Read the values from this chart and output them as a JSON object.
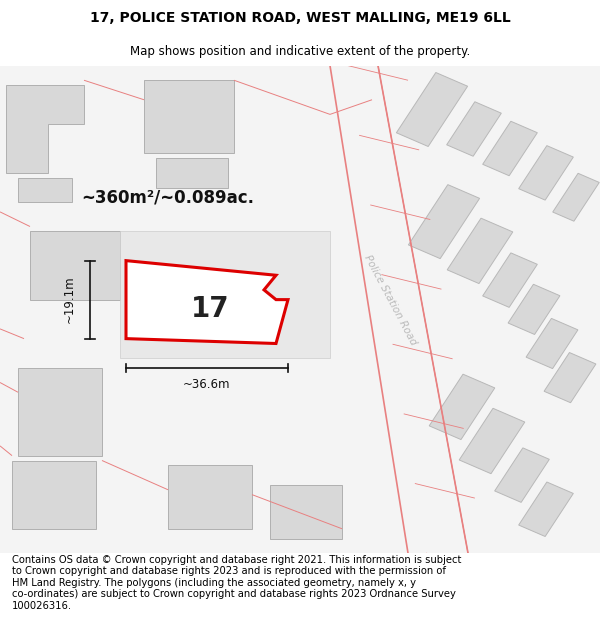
{
  "title_line1": "17, POLICE STATION ROAD, WEST MALLING, ME19 6LL",
  "title_line2": "Map shows position and indicative extent of the property.",
  "footer_text": "Contains OS data © Crown copyright and database right 2021. This information is subject\nto Crown copyright and database rights 2023 and is reproduced with the permission of\nHM Land Registry. The polygons (including the associated geometry, namely x, y\nco-ordinates) are subject to Crown copyright and database rights 2023 Ordnance Survey\n100026316.",
  "background_color": "#ffffff",
  "building_fill": "#e0e0e0",
  "building_edge": "#bbbbbb",
  "road_line_color": "#e88080",
  "highlight_color": "#dd0000",
  "area_label": "~360m²/~0.089ac.",
  "number_label": "17",
  "dim_width": "~36.6m",
  "dim_height": "~19.1m",
  "road_label": "Police Station Road",
  "title_fontsize": 10,
  "subtitle_fontsize": 8.5,
  "footer_fontsize": 7.2
}
